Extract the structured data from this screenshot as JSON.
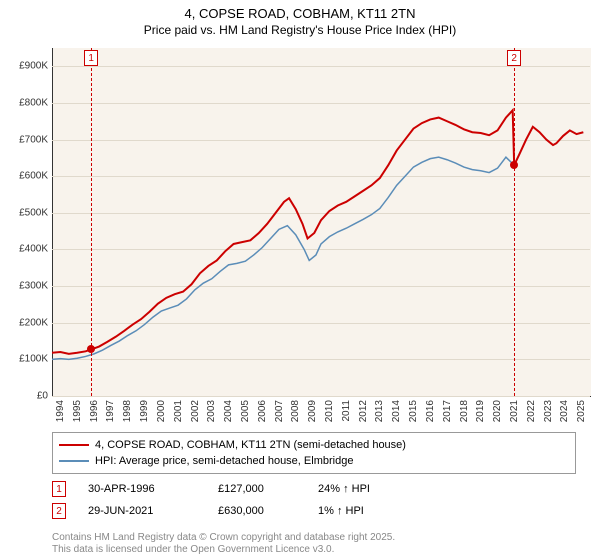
{
  "title_line1": "4, COPSE ROAD, COBHAM, KT11 2TN",
  "title_line2": "Price paid vs. HM Land Registry's House Price Index (HPI)",
  "chart": {
    "type": "line",
    "background_color": "#f8f3ec",
    "grid_color": "#e0d9cc",
    "x_range": [
      1994,
      2026
    ],
    "x_ticks": [
      1994,
      1995,
      1996,
      1997,
      1998,
      1999,
      2000,
      2001,
      2002,
      2003,
      2004,
      2005,
      2006,
      2007,
      2008,
      2009,
      2010,
      2011,
      2012,
      2013,
      2014,
      2015,
      2016,
      2017,
      2018,
      2019,
      2020,
      2021,
      2022,
      2023,
      2024,
      2025
    ],
    "y_range": [
      0,
      950000
    ],
    "y_ticks": [
      0,
      100000,
      200000,
      300000,
      400000,
      500000,
      600000,
      700000,
      800000,
      900000
    ],
    "y_tick_labels": [
      "£0",
      "£100K",
      "£200K",
      "£300K",
      "£400K",
      "£500K",
      "£600K",
      "£700K",
      "£800K",
      "£900K"
    ],
    "series": [
      {
        "name": "4, COPSE ROAD, COBHAM, KT11 2TN (semi-detached house)",
        "color": "#cc0000",
        "width": 2,
        "data": [
          [
            1994.0,
            118
          ],
          [
            1994.5,
            120
          ],
          [
            1995.0,
            115
          ],
          [
            1995.5,
            118
          ],
          [
            1996.0,
            122
          ],
          [
            1996.33,
            127
          ],
          [
            1996.8,
            135
          ],
          [
            1997.3,
            148
          ],
          [
            1997.8,
            162
          ],
          [
            1998.3,
            178
          ],
          [
            1998.8,
            195
          ],
          [
            1999.3,
            210
          ],
          [
            1999.8,
            230
          ],
          [
            2000.3,
            252
          ],
          [
            2000.8,
            268
          ],
          [
            2001.3,
            278
          ],
          [
            2001.8,
            285
          ],
          [
            2002.3,
            305
          ],
          [
            2002.8,
            335
          ],
          [
            2003.3,
            355
          ],
          [
            2003.8,
            370
          ],
          [
            2004.3,
            395
          ],
          [
            2004.8,
            415
          ],
          [
            2005.3,
            420
          ],
          [
            2005.8,
            425
          ],
          [
            2006.3,
            445
          ],
          [
            2006.8,
            470
          ],
          [
            2007.3,
            500
          ],
          [
            2007.8,
            530
          ],
          [
            2008.1,
            540
          ],
          [
            2008.5,
            510
          ],
          [
            2008.9,
            470
          ],
          [
            2009.2,
            430
          ],
          [
            2009.6,
            445
          ],
          [
            2010.0,
            480
          ],
          [
            2010.5,
            505
          ],
          [
            2011.0,
            520
          ],
          [
            2011.5,
            530
          ],
          [
            2012.0,
            545
          ],
          [
            2012.5,
            560
          ],
          [
            2013.0,
            575
          ],
          [
            2013.5,
            595
          ],
          [
            2014.0,
            630
          ],
          [
            2014.5,
            670
          ],
          [
            2015.0,
            700
          ],
          [
            2015.5,
            730
          ],
          [
            2016.0,
            745
          ],
          [
            2016.5,
            755
          ],
          [
            2017.0,
            760
          ],
          [
            2017.5,
            750
          ],
          [
            2018.0,
            740
          ],
          [
            2018.5,
            728
          ],
          [
            2019.0,
            720
          ],
          [
            2019.5,
            718
          ],
          [
            2020.0,
            712
          ],
          [
            2020.5,
            725
          ],
          [
            2021.0,
            760
          ],
          [
            2021.4,
            780
          ],
          [
            2021.49,
            630
          ],
          [
            2021.8,
            660
          ],
          [
            2022.2,
            700
          ],
          [
            2022.6,
            735
          ],
          [
            2023.0,
            720
          ],
          [
            2023.4,
            700
          ],
          [
            2023.8,
            685
          ],
          [
            2024.0,
            690
          ],
          [
            2024.4,
            710
          ],
          [
            2024.8,
            725
          ],
          [
            2025.2,
            715
          ],
          [
            2025.6,
            720
          ]
        ]
      },
      {
        "name": "HPI: Average price, semi-detached house, Elmbridge",
        "color": "#5b8db8",
        "width": 1.5,
        "data": [
          [
            1994.0,
            100
          ],
          [
            1994.5,
            102
          ],
          [
            1995.0,
            100
          ],
          [
            1995.5,
            103
          ],
          [
            1996.0,
            108
          ],
          [
            1996.5,
            115
          ],
          [
            1997.0,
            125
          ],
          [
            1997.5,
            138
          ],
          [
            1998.0,
            150
          ],
          [
            1998.5,
            165
          ],
          [
            1999.0,
            178
          ],
          [
            1999.5,
            195
          ],
          [
            2000.0,
            215
          ],
          [
            2000.5,
            232
          ],
          [
            2001.0,
            240
          ],
          [
            2001.5,
            248
          ],
          [
            2002.0,
            265
          ],
          [
            2002.5,
            290
          ],
          [
            2003.0,
            308
          ],
          [
            2003.5,
            320
          ],
          [
            2004.0,
            340
          ],
          [
            2004.5,
            358
          ],
          [
            2005.0,
            362
          ],
          [
            2005.5,
            368
          ],
          [
            2006.0,
            385
          ],
          [
            2006.5,
            405
          ],
          [
            2007.0,
            430
          ],
          [
            2007.5,
            455
          ],
          [
            2008.0,
            465
          ],
          [
            2008.5,
            440
          ],
          [
            2009.0,
            400
          ],
          [
            2009.3,
            370
          ],
          [
            2009.7,
            385
          ],
          [
            2010.0,
            415
          ],
          [
            2010.5,
            435
          ],
          [
            2011.0,
            448
          ],
          [
            2011.5,
            458
          ],
          [
            2012.0,
            470
          ],
          [
            2012.5,
            482
          ],
          [
            2013.0,
            495
          ],
          [
            2013.5,
            512
          ],
          [
            2014.0,
            542
          ],
          [
            2014.5,
            575
          ],
          [
            2015.0,
            600
          ],
          [
            2015.5,
            625
          ],
          [
            2016.0,
            638
          ],
          [
            2016.5,
            648
          ],
          [
            2017.0,
            652
          ],
          [
            2017.5,
            645
          ],
          [
            2018.0,
            636
          ],
          [
            2018.5,
            625
          ],
          [
            2019.0,
            618
          ],
          [
            2019.5,
            615
          ],
          [
            2020.0,
            610
          ],
          [
            2020.5,
            622
          ],
          [
            2021.0,
            652
          ],
          [
            2021.49,
            630
          ],
          [
            2021.8,
            660
          ],
          [
            2022.2,
            700
          ],
          [
            2022.6,
            735
          ],
          [
            2023.0,
            720
          ],
          [
            2023.4,
            700
          ],
          [
            2023.8,
            685
          ],
          [
            2024.0,
            690
          ],
          [
            2024.4,
            710
          ],
          [
            2024.8,
            725
          ],
          [
            2025.2,
            715
          ],
          [
            2025.6,
            720
          ]
        ]
      }
    ],
    "sale_markers": [
      {
        "n": "1",
        "x": 1996.33,
        "y": 127,
        "color": "#cc0000"
      },
      {
        "n": "2",
        "x": 2021.49,
        "y": 630,
        "color": "#cc0000"
      }
    ]
  },
  "legend": [
    {
      "color": "#cc0000",
      "label": "4, COPSE ROAD, COBHAM, KT11 2TN (semi-detached house)"
    },
    {
      "color": "#5b8db8",
      "label": "HPI: Average price, semi-detached house, Elmbridge"
    }
  ],
  "sales": [
    {
      "n": "1",
      "date": "30-APR-1996",
      "price": "£127,000",
      "delta": "24% ↑ HPI"
    },
    {
      "n": "2",
      "date": "29-JUN-2021",
      "price": "£630,000",
      "delta": "1% ↑ HPI"
    }
  ],
  "footer_line1": "Contains HM Land Registry data © Crown copyright and database right 2025.",
  "footer_line2": "This data is licensed under the Open Government Licence v3.0."
}
